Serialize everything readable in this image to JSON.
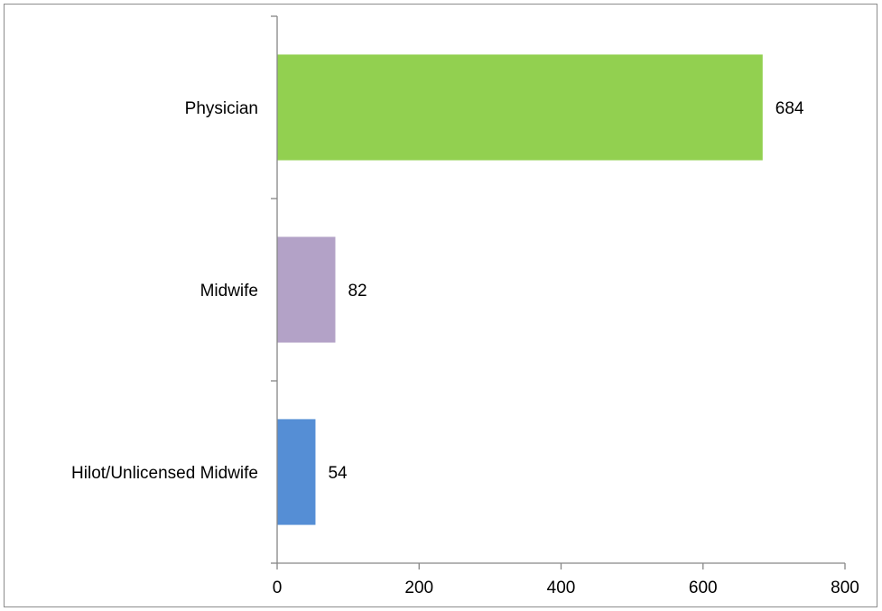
{
  "chart_data": {
    "type": "bar",
    "orientation": "horizontal",
    "categories": [
      "Physician",
      "Midwife",
      "Hilot/Unlicensed Midwife"
    ],
    "values": [
      684,
      82,
      54
    ],
    "data_labels": [
      "684",
      "82",
      "54"
    ],
    "colors": [
      "#92d050",
      "#b3a2c7",
      "#558ed5"
    ],
    "xlim": [
      0,
      800
    ],
    "x_ticks": [
      0,
      200,
      400,
      600,
      800
    ],
    "x_tick_labels": [
      "0",
      "200",
      "400",
      "600",
      "800"
    ],
    "title": "",
    "xlabel": "",
    "ylabel": "",
    "grid": false,
    "legend": "none"
  }
}
